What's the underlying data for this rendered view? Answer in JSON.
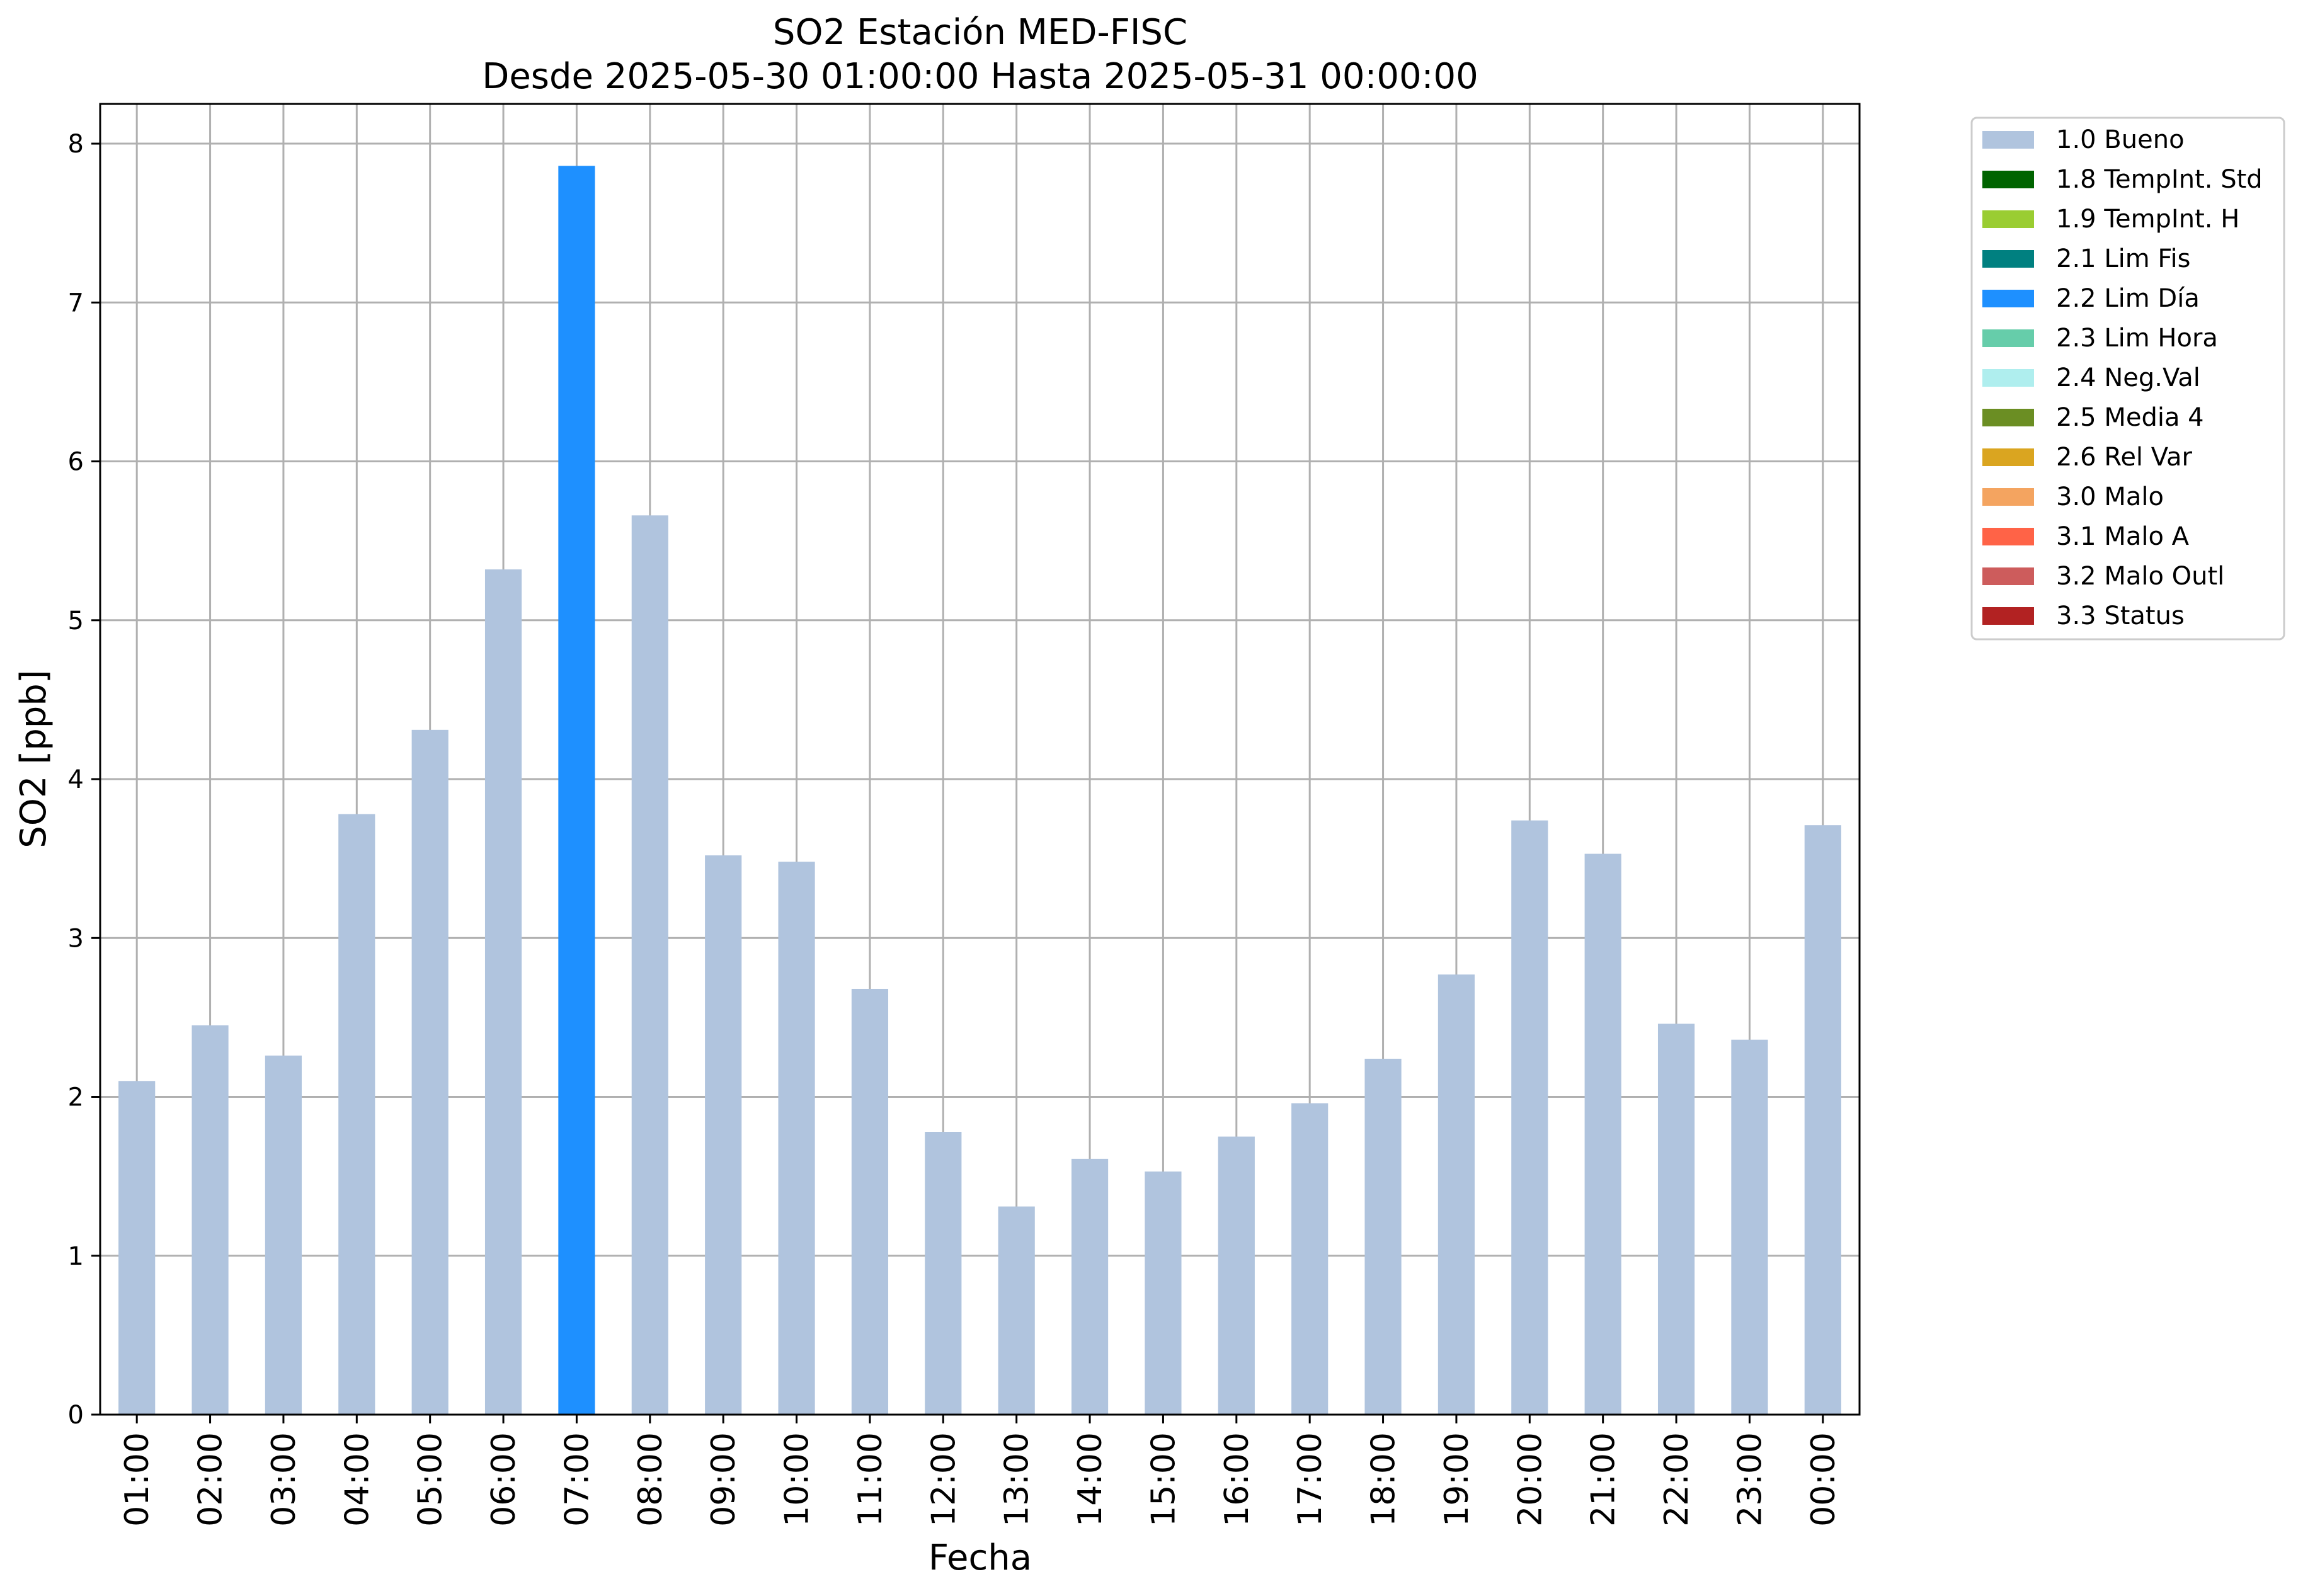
{
  "chart_data": {
    "type": "bar",
    "title": "SO2 Estación MED-FISC",
    "subtitle": "Desde 2025-05-30 01:00:00 Hasta 2025-05-31 00:00:00",
    "xlabel": "Fecha",
    "ylabel": "SO2 [ppb]",
    "ylim": [
      0,
      8.25
    ],
    "yticks": [
      0,
      1,
      2,
      3,
      4,
      5,
      6,
      7,
      8
    ],
    "grid": true,
    "legend_position": "outside-right-top",
    "categories": [
      "01:00",
      "02:00",
      "03:00",
      "04:00",
      "05:00",
      "06:00",
      "07:00",
      "08:00",
      "09:00",
      "10:00",
      "11:00",
      "12:00",
      "13:00",
      "14:00",
      "15:00",
      "16:00",
      "17:00",
      "18:00",
      "19:00",
      "20:00",
      "21:00",
      "22:00",
      "23:00",
      "00:00"
    ],
    "values": [
      2.1,
      2.45,
      2.26,
      3.78,
      4.31,
      5.32,
      7.86,
      5.66,
      3.52,
      3.48,
      2.68,
      1.78,
      1.31,
      1.61,
      1.53,
      1.75,
      1.96,
      2.24,
      2.77,
      3.74,
      3.53,
      2.46,
      2.36,
      3.71
    ],
    "flags": [
      "1.0 Bueno",
      "1.0 Bueno",
      "1.0 Bueno",
      "1.0 Bueno",
      "1.0 Bueno",
      "1.0 Bueno",
      "2.2 Lim Día",
      "1.0 Bueno",
      "1.0 Bueno",
      "1.0 Bueno",
      "1.0 Bueno",
      "1.0 Bueno",
      "1.0 Bueno",
      "1.0 Bueno",
      "1.0 Bueno",
      "1.0 Bueno",
      "1.0 Bueno",
      "1.0 Bueno",
      "1.0 Bueno",
      "1.0 Bueno",
      "1.0 Bueno",
      "1.0 Bueno",
      "1.0 Bueno",
      "1.0 Bueno"
    ],
    "legend": [
      {
        "label": "1.0 Bueno",
        "color": "#b0c4de"
      },
      {
        "label": "1.8 TempInt. Std",
        "color": "#006400"
      },
      {
        "label": "1.9 TempInt. H",
        "color": "#9acd32"
      },
      {
        "label": "2.1 Lim Fis",
        "color": "#008080"
      },
      {
        "label": "2.2 Lim Día",
        "color": "#1e90ff"
      },
      {
        "label": "2.3 Lim Hora",
        "color": "#66cdaa"
      },
      {
        "label": "2.4 Neg.Val",
        "color": "#afeeee"
      },
      {
        "label": "2.5 Media 4",
        "color": "#6b8e23"
      },
      {
        "label": "2.6 Rel Var",
        "color": "#daa520"
      },
      {
        "label": "3.0 Malo",
        "color": "#f4a460"
      },
      {
        "label": "3.1 Malo A",
        "color": "#ff6347"
      },
      {
        "label": "3.2 Malo Outl",
        "color": "#cd5c5c"
      },
      {
        "label": "3.3 Status",
        "color": "#b22222"
      }
    ]
  }
}
